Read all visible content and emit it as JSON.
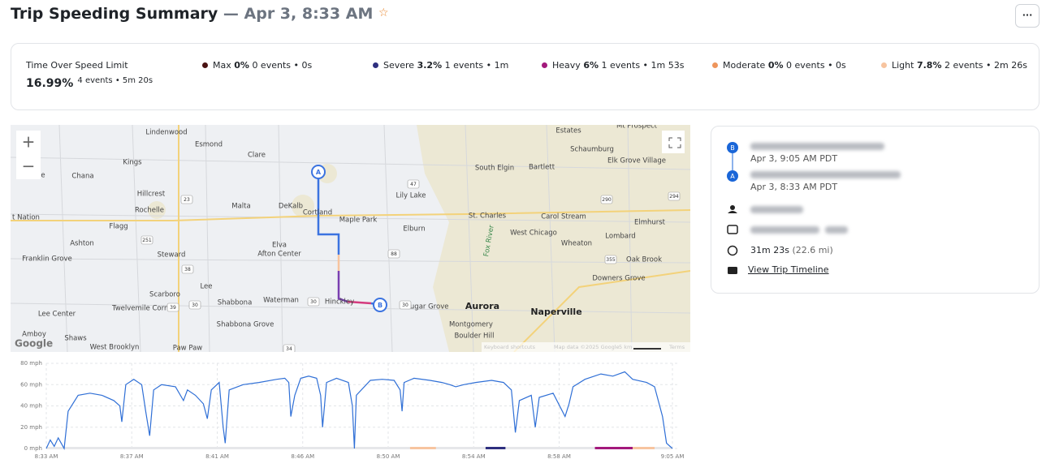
{
  "header": {
    "title": "Trip Speeding Summary",
    "subtitle": "— Apr 3, 8:33 AM",
    "menu": "···"
  },
  "summary": {
    "label": "Time Over Speed Limit",
    "value": "16.99%",
    "detail": "4 events • 5m 20s",
    "levels": [
      {
        "name": "Max",
        "percent": "0%",
        "detail": "0 events • 0s",
        "color": "#4a1212"
      },
      {
        "name": "Severe",
        "percent": "3.2%",
        "detail": "1 events • 1m",
        "color": "#2e2f7f"
      },
      {
        "name": "Heavy",
        "percent": "6%",
        "detail": "1 events • 1m 53s",
        "color": "#a3197c"
      },
      {
        "name": "Moderate",
        "percent": "0%",
        "detail": "0 events • 0s",
        "color": "#ee955c"
      },
      {
        "name": "Light",
        "percent": "7.8%",
        "detail": "2 events • 2m 26s",
        "color": "#f7c49f"
      }
    ]
  },
  "map": {
    "places": [
      "Lindenwood",
      "Esmond",
      "Clare",
      "Kings",
      "ville",
      "Chana",
      "Hillcrest",
      "Rochelle",
      "Malta",
      "DeKalb",
      "Cortland",
      "Maple Park",
      "Lily Lake",
      "South Elgin",
      "Bartlett",
      "Schaumburg",
      "Estates",
      "Mt Prospect",
      "Elk Grove Village",
      "St. Charles",
      "Carol Stream",
      "Elmhurst",
      "West Chicago",
      "Wheaton",
      "Lombard",
      "Oak Brook",
      "Downers Grove",
      "Elburn",
      "t Nation",
      "Flagg",
      "Ashton",
      "Steward",
      "Elva",
      "Afton Center",
      "Franklin Grove",
      "Lee",
      "Scarboro",
      "Twelvemile Corner",
      "Shabbona",
      "Waterman",
      "Hinckley",
      "Sugar Grove",
      "Montgomery",
      "Boulder Hill",
      "Shabbona Grove",
      "Lee Center",
      "Amboy",
      "Shaws",
      "West Brooklyn",
      "Paw Paw"
    ],
    "cities": [
      "Aurora",
      "Naperville"
    ],
    "river": "Fox River",
    "shields": [
      "39",
      "23",
      "251",
      "38",
      "30",
      "88",
      "47",
      "290",
      "294",
      "355",
      "30",
      "30",
      "34"
    ],
    "markers": [
      "A",
      "B"
    ],
    "attribution": [
      "Keyboard shortcuts",
      "Map data ©2025 Google",
      "5 km",
      "Terms"
    ],
    "logo": "Google",
    "zoom": [
      "+",
      "−"
    ]
  },
  "trip": {
    "end": {
      "marker": "B",
      "time": "Apr 3, 9:05 AM PDT"
    },
    "start": {
      "marker": "A",
      "time": "Apr 3, 8:33 AM PDT"
    },
    "duration": "31m 23s",
    "distance": "(22.6 mi)",
    "link": "View Trip Timeline"
  },
  "chart_data": {
    "type": "line",
    "color": "#2f6fd6",
    "x": [
      513.5,
      513.7,
      513.9,
      514.1,
      514.4,
      514.6,
      515.1,
      515.7,
      516.3,
      516.9,
      517.2,
      517.3,
      517.5,
      517.9,
      518.3,
      518.5,
      518.7,
      518.9,
      519.3,
      520.0,
      520.4,
      520.6,
      521.0,
      521.4,
      521.6,
      521.8,
      522.2,
      522.4,
      522.5,
      522.7,
      523.4,
      524.2,
      525.1,
      525.5,
      525.7,
      525.8,
      526.0,
      526.3,
      526.7,
      527.1,
      527.3,
      527.4,
      527.6,
      528.1,
      528.7,
      528.9,
      529.0,
      529.1,
      529.8,
      530.4,
      531.0,
      531.3,
      531.4,
      531.5,
      532.0,
      532.8,
      533.4,
      533.8,
      534.1,
      534.5,
      535.1,
      535.9,
      536.5,
      536.9,
      537.1,
      537.3,
      537.9,
      538.1,
      538.3,
      539.0,
      539.6,
      539.8,
      540.0,
      540.6,
      541.4,
      542.0,
      542.6,
      543.0,
      543.7,
      544.1,
      544.5,
      544.7,
      545.0
    ],
    "values": [
      0,
      8,
      2,
      10,
      0,
      35,
      50,
      52,
      50,
      45,
      40,
      25,
      60,
      65,
      60,
      35,
      12,
      55,
      60,
      58,
      45,
      55,
      50,
      42,
      28,
      55,
      62,
      20,
      5,
      55,
      60,
      62,
      65,
      66,
      62,
      30,
      50,
      66,
      68,
      66,
      50,
      20,
      62,
      66,
      62,
      40,
      0,
      50,
      64,
      65,
      64,
      55,
      35,
      62,
      66,
      64,
      62,
      60,
      58,
      60,
      62,
      64,
      62,
      55,
      15,
      45,
      50,
      20,
      48,
      52,
      30,
      42,
      58,
      65,
      70,
      68,
      72,
      65,
      62,
      58,
      30,
      5,
      0
    ],
    "xlim": [
      513.5,
      545.0
    ],
    "xticks": [
      {
        "value": 513.5,
        "label": "8:33 AM"
      },
      {
        "value": 517.8,
        "label": "8:37 AM"
      },
      {
        "value": 522.1,
        "label": "8:41 AM"
      },
      {
        "value": 526.4,
        "label": "8:46 AM"
      },
      {
        "value": 530.7,
        "label": "8:50 AM"
      },
      {
        "value": 535.0,
        "label": "8:54 AM"
      },
      {
        "value": 539.3,
        "label": "8:58 AM"
      },
      {
        "value": 545.0,
        "label": "9:05 AM"
      }
    ],
    "ylim": [
      0,
      80
    ],
    "yticks": [
      {
        "value": 0,
        "label": "0 mph"
      },
      {
        "value": 20,
        "label": "20 mph"
      },
      {
        "value": 40,
        "label": "40 mph"
      },
      {
        "value": 60,
        "label": "60 mph"
      },
      {
        "value": 80,
        "label": "80 mph"
      }
    ],
    "grid": true,
    "speeding_segments": [
      {
        "start": 531.8,
        "end": 533.1,
        "color": "#f7c49f"
      },
      {
        "start": 535.6,
        "end": 536.6,
        "color": "#2e2f7f"
      },
      {
        "start": 541.1,
        "end": 543.0,
        "color": "#a3197c"
      },
      {
        "start": 543.0,
        "end": 544.1,
        "color": "#f7c49f"
      }
    ]
  }
}
